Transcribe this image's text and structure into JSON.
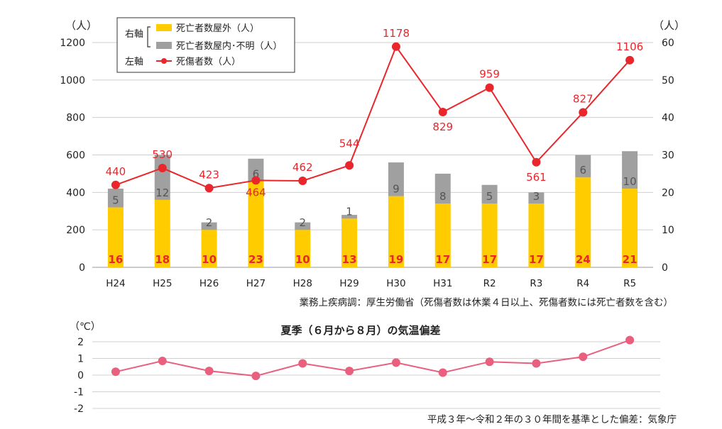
{
  "chart_data": [
    {
      "type": "bar+line",
      "categories": [
        "H24",
        "H25",
        "H26",
        "H27",
        "H28",
        "H29",
        "H30",
        "H31",
        "R2",
        "R3",
        "R4",
        "R5"
      ],
      "left_axis": {
        "unit": "（人）",
        "ylim": [
          0,
          1200
        ],
        "ticks": [
          0,
          200,
          400,
          600,
          800,
          1000,
          1200
        ]
      },
      "right_axis": {
        "unit": "（人）",
        "ylim": [
          0,
          60
        ],
        "ticks": [
          0,
          10,
          20,
          30,
          40,
          50,
          60
        ]
      },
      "legend": {
        "right_axis_label": "右軸",
        "left_axis_label": "左軸",
        "items": [
          {
            "name": "死亡者数屋外（人）",
            "color": "#ffcc00",
            "kind": "bar"
          },
          {
            "name": "死亡者数屋内･不明（人）",
            "color": "#a0a0a0",
            "kind": "bar"
          },
          {
            "name": "死傷者数（人）",
            "color": "#e8262b",
            "kind": "line"
          }
        ]
      },
      "series": [
        {
          "name": "死亡者数屋外（人）",
          "axis": "right",
          "values": [
            16,
            18,
            10,
            23,
            10,
            13,
            19,
            17,
            17,
            17,
            24,
            21
          ]
        },
        {
          "name": "死亡者数屋内･不明（人）",
          "axis": "right",
          "values": [
            5,
            12,
            2,
            6,
            2,
            1,
            9,
            8,
            5,
            3,
            6,
            10
          ]
        },
        {
          "name": "死傷者数（人）",
          "axis": "left",
          "values": [
            440,
            530,
            423,
            464,
            462,
            544,
            1178,
            829,
            959,
            561,
            827,
            1106
          ]
        }
      ],
      "source": "業務上疾病調：厚生労働省（死傷者数は休業４日以上、死傷者数には死亡者数を含む）"
    },
    {
      "type": "line",
      "title": "夏季（６月から８月）の気温偏差",
      "unit": "（℃）",
      "ylim": [
        -2,
        2
      ],
      "ticks": [
        2,
        1,
        0,
        -1,
        -2
      ],
      "categories": [
        "H24",
        "H25",
        "H26",
        "H27",
        "H28",
        "H29",
        "H30",
        "H31",
        "R2",
        "R3",
        "R4",
        "R5"
      ],
      "values": [
        0.2,
        0.85,
        0.25,
        -0.05,
        0.7,
        0.25,
        0.75,
        0.15,
        0.8,
        0.7,
        1.1,
        2.1
      ],
      "color": "#e8607e",
      "source": "平成３年～令和２年の３０年間を基準とした偏差：気象庁"
    }
  ]
}
